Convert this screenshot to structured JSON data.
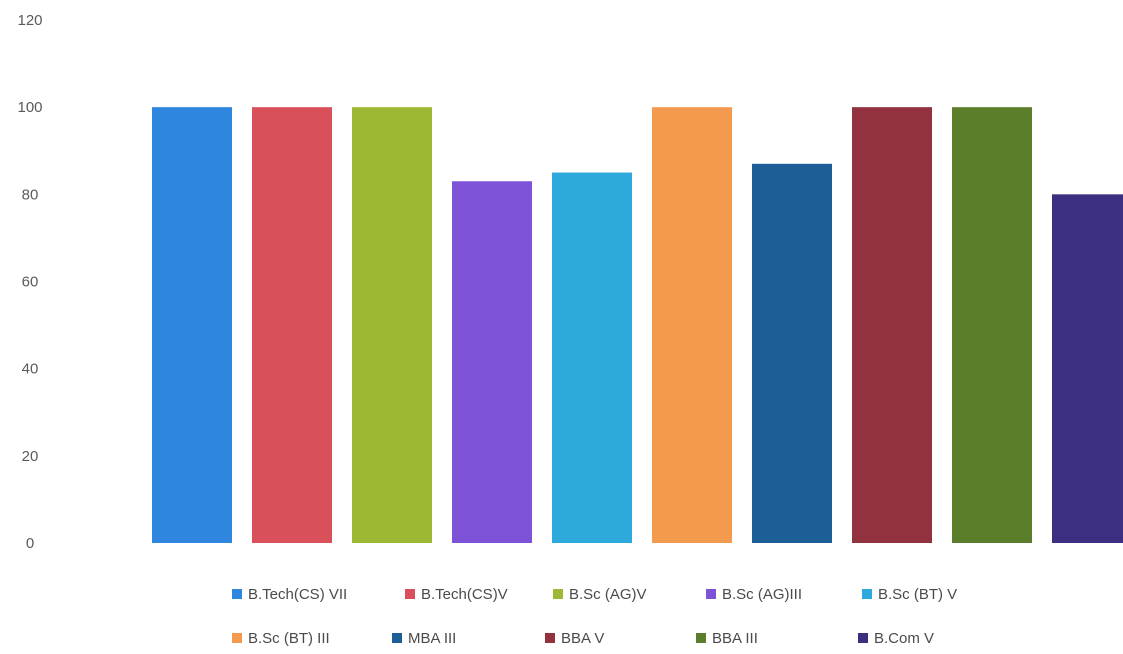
{
  "chart_data": {
    "type": "bar",
    "categories": [
      "B.Tech(CS) VII",
      "B.Tech(CS)V",
      "B.Sc (AG)V",
      "B.Sc (AG)III",
      "B.Sc (BT) V",
      "B.Sc (BT) III",
      "MBA III",
      "BBA V",
      "BBA III",
      "B.Com V"
    ],
    "values": [
      100,
      100,
      100,
      83,
      85,
      100,
      87,
      100,
      100,
      80
    ],
    "colors": [
      "#2F86DE",
      "#D9505B",
      "#9DB832",
      "#7D52D6",
      "#2EA9DB",
      "#F39A4E",
      "#1D5E96",
      "#93323F",
      "#5B7E2A",
      "#3C2F82"
    ],
    "yticks": [
      0,
      20,
      40,
      60,
      80,
      100,
      120
    ],
    "ylim": [
      0,
      120
    ],
    "legend_position": "bottom",
    "grid": false
  }
}
